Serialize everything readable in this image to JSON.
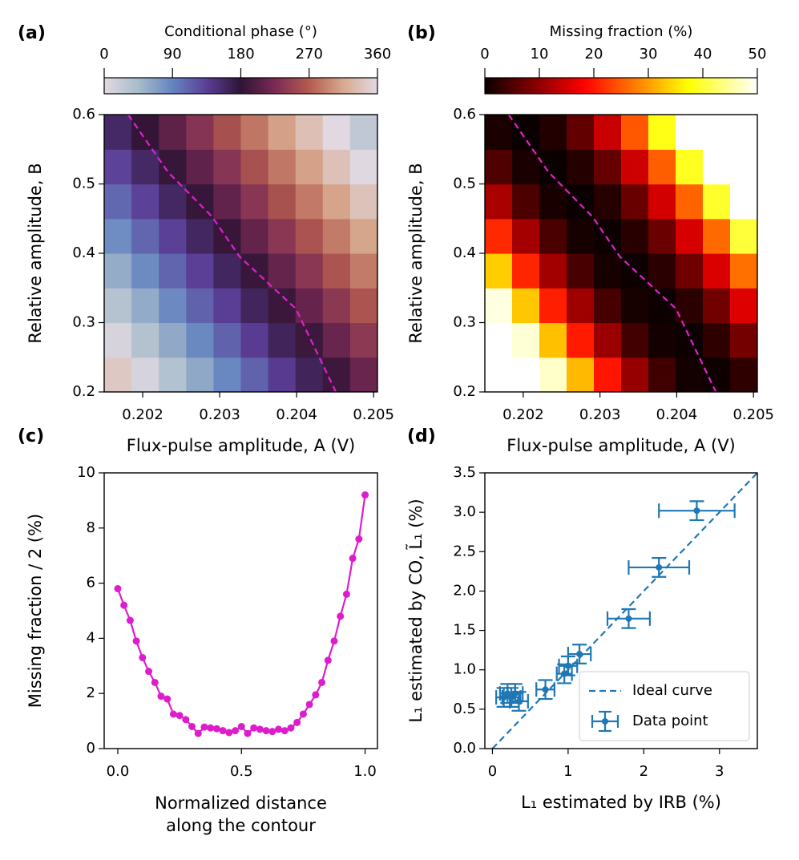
{
  "chart_data": [
    {
      "type": "heatmap",
      "panel": "(a)",
      "x_label": "Flux-pulse amplitude, A (V)",
      "y_label": "Relative amplitude, B",
      "xlim": [
        0.2015,
        0.20505
      ],
      "xticks": [
        0.202,
        0.203,
        0.204,
        0.205
      ],
      "ylim": [
        0.2,
        0.6
      ],
      "yticks": [
        0.2,
        0.3,
        0.4,
        0.5,
        0.6
      ],
      "colormap": "twilight",
      "colorbar": {
        "label": "Conditional phase (°)",
        "lim": [
          0,
          360
        ],
        "ticks": [
          0,
          90,
          180,
          270,
          360
        ]
      },
      "z": [
        [
          344,
          10,
          36,
          61,
          87,
          112,
          138,
          163,
          189,
          215
        ],
        [
          9,
          35,
          60,
          86,
          111,
          137,
          163,
          188,
          214,
          239
        ],
        [
          34,
          59,
          85,
          111,
          136,
          162,
          187,
          213,
          238,
          264
        ],
        [
          58,
          84,
          110,
          135,
          161,
          186,
          212,
          237,
          263,
          288
        ],
        [
          83,
          109,
          134,
          160,
          185,
          211,
          237,
          262,
          288,
          313
        ],
        [
          108,
          133,
          159,
          184,
          210,
          236,
          261,
          287,
          312,
          338
        ],
        [
          132,
          158,
          184,
          209,
          235,
          260,
          286,
          311,
          337,
          2
        ],
        [
          157,
          183,
          208,
          234,
          259,
          285,
          310,
          336,
          1,
          27
        ]
      ],
      "contour": {
        "color": "#e020d0",
        "x": [
          0.20181,
          0.20233,
          0.2029,
          0.20326,
          0.20399,
          0.20451
        ],
        "y": [
          0.6,
          0.517,
          0.453,
          0.395,
          0.32,
          0.2
        ]
      }
    },
    {
      "type": "heatmap",
      "panel": "(b)",
      "x_label": "Flux-pulse amplitude, A (V)",
      "y_label": "Relative amplitude, B",
      "xlim": [
        0.2015,
        0.20505
      ],
      "xticks": [
        0.202,
        0.203,
        0.204,
        0.205
      ],
      "ylim": [
        0.2,
        0.6
      ],
      "yticks": [
        0.2,
        0.3,
        0.4,
        0.5,
        0.6
      ],
      "colormap": "hot",
      "colorbar": {
        "label": "Missing fraction (%)",
        "lim": [
          0,
          50
        ],
        "ticks": [
          0,
          10,
          20,
          30,
          40,
          50
        ]
      },
      "z": [
        [
          50,
          50,
          47.3,
          32.1,
          19.8,
          10.4,
          4.0,
          0.6,
          0.2,
          2.7
        ],
        [
          50,
          47.9,
          32.6,
          20.2,
          10.7,
          4.2,
          0.7,
          0.1,
          2.6,
          7.9
        ],
        [
          48.5,
          33.1,
          20.6,
          11.0,
          4.4,
          0.8,
          0.1,
          2.4,
          7.6,
          15.8
        ],
        [
          33.6,
          21.0,
          11.3,
          4.6,
          0.9,
          0.1,
          2.3,
          7.4,
          15.5,
          26.6
        ],
        [
          21.3,
          11.5,
          4.8,
          0.9,
          0.1,
          2.2,
          7.2,
          15.2,
          26.2,
          40.2
        ],
        [
          11.8,
          4.9,
          1.0,
          0.0,
          2.0,
          7.0,
          14.9,
          25.7,
          39.5,
          50
        ],
        [
          5.1,
          1.1,
          0.0,
          1.9,
          6.7,
          14.5,
          25.3,
          39.0,
          50,
          50
        ],
        [
          1.2,
          0.0,
          1.8,
          6.5,
          14.2,
          24.8,
          38.4,
          50,
          50,
          50
        ]
      ],
      "contour": {
        "color": "#e020d0",
        "x": [
          0.20181,
          0.20233,
          0.2029,
          0.20326,
          0.20399,
          0.20451
        ],
        "y": [
          0.6,
          0.517,
          0.453,
          0.395,
          0.32,
          0.2
        ]
      }
    },
    {
      "type": "line",
      "panel": "(c)",
      "x_label": [
        "Normalized distance",
        "along the contour"
      ],
      "y_label": "Missing fraction / 2 (%)",
      "xlim": [
        -0.055,
        1.05
      ],
      "xticks": [
        {
          "value": 0,
          "label": "0.0"
        },
        0.5,
        {
          "value": 1,
          "label": "1.0"
        }
      ],
      "ylim": [
        0,
        10
      ],
      "yticks": [
        0,
        2,
        4,
        6,
        8,
        10
      ],
      "series": [
        {
          "color": "#dd1ccc",
          "x": [
            0,
            0.025,
            0.05,
            0.075,
            0.1,
            0.125,
            0.15,
            0.175,
            0.2,
            0.225,
            0.25,
            0.275,
            0.3,
            0.325,
            0.35,
            0.375,
            0.4,
            0.425,
            0.45,
            0.475,
            0.5,
            0.525,
            0.55,
            0.575,
            0.6,
            0.625,
            0.65,
            0.675,
            0.7,
            0.725,
            0.75,
            0.775,
            0.8,
            0.825,
            0.85,
            0.875,
            0.9,
            0.925,
            0.95,
            0.975,
            1
          ],
          "values": [
            5.8,
            5.2,
            4.65,
            3.9,
            3.3,
            2.8,
            2.4,
            1.9,
            1.8,
            1.25,
            1.2,
            1.05,
            0.8,
            0.55,
            0.78,
            0.75,
            0.72,
            0.65,
            0.58,
            0.65,
            0.8,
            0.55,
            0.75,
            0.7,
            0.65,
            0.62,
            0.7,
            0.65,
            0.75,
            0.95,
            1.25,
            1.6,
            1.95,
            2.4,
            3.2,
            3.9,
            4.8,
            5.6,
            6.9,
            7.6,
            9.2
          ]
        }
      ]
    },
    {
      "type": "scatter",
      "panel": "(d)",
      "x_label": "L₁ estimated by IRB (%)",
      "y_label": "L₁ estimated by CO, L̃₁ (%)",
      "xlim": [
        -0.1,
        3.5
      ],
      "xticks": [
        0,
        1,
        2,
        3
      ],
      "ylim": [
        0,
        3.5
      ],
      "yticks": [
        {
          "value": 0,
          "label": "0.0"
        },
        0.5,
        {
          "value": 1,
          "label": "1.0"
        },
        1.5,
        {
          "value": 2,
          "label": "2.0"
        },
        2.5,
        {
          "value": 3,
          "label": "3.0"
        },
        3.5
      ],
      "legend": "lower right",
      "series": [
        {
          "name": "Ideal curve",
          "color": "#1f77b4",
          "style": "dashed",
          "x": [
            0,
            3.5
          ],
          "values": [
            0,
            3.5
          ]
        },
        {
          "name": "Data point",
          "color": "#1f77b4",
          "style": "errorbar",
          "x": [
            2.7,
            2.2,
            1.8,
            1.15,
            1.0,
            0.95,
            0.7,
            0.3,
            0.25,
            0.2,
            0.35,
            0.15
          ],
          "values": [
            3.02,
            2.3,
            1.65,
            1.2,
            1.05,
            0.95,
            0.75,
            0.7,
            0.65,
            0.7,
            0.6,
            0.65
          ],
          "xerr": [
            0.5,
            0.4,
            0.28,
            0.15,
            0.12,
            0.1,
            0.12,
            0.1,
            0.12,
            0.1,
            0.12,
            0.1
          ],
          "yerr": [
            0.12,
            0.12,
            0.12,
            0.12,
            0.12,
            0.12,
            0.12,
            0.12,
            0.12,
            0.12,
            0.12,
            0.12
          ]
        }
      ]
    }
  ]
}
